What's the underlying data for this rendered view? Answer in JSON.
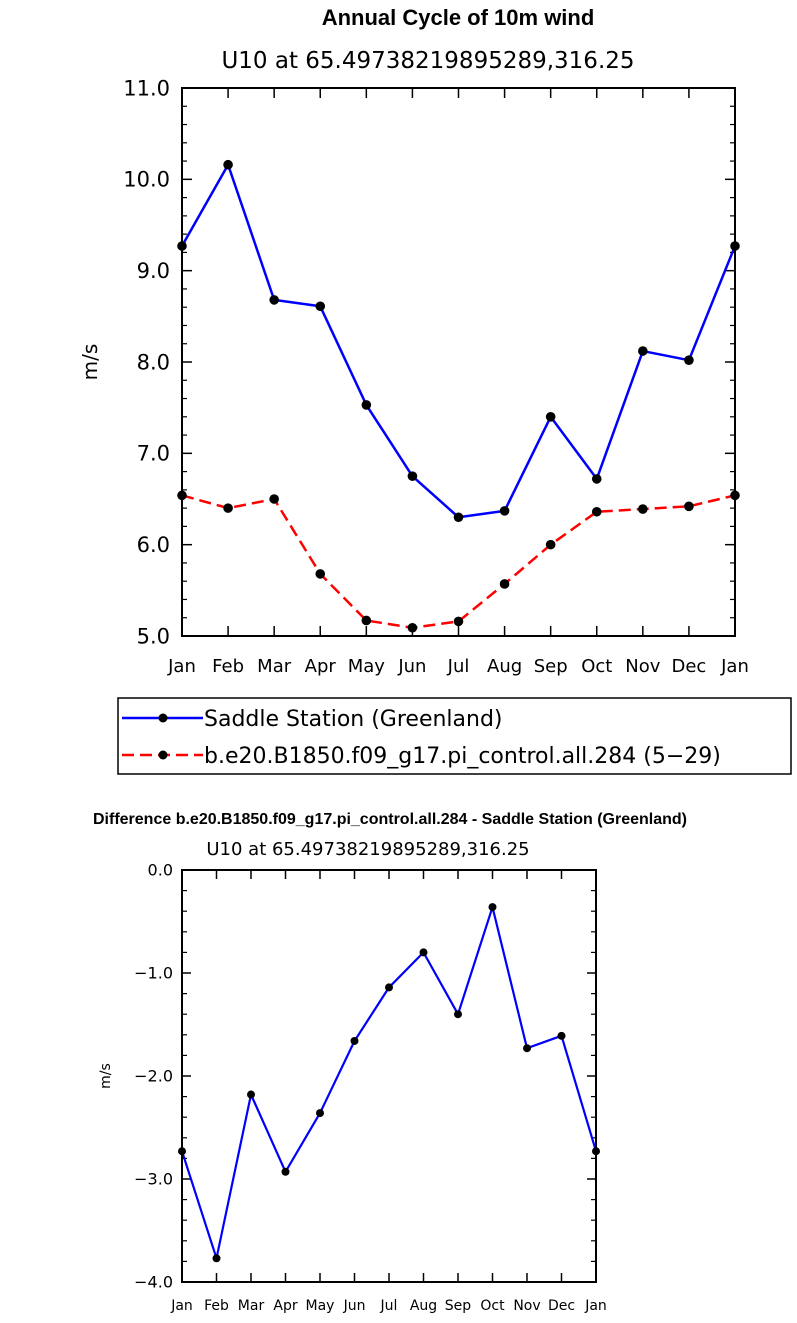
{
  "legend": {
    "entries": [
      {
        "label": "Saddle Station (Greenland)"
      },
      {
        "label": "b.e20.B1850.f09_g17.pi_control.all.284 (5−29)"
      }
    ]
  },
  "chart_data": [
    {
      "type": "line",
      "title": "Annual Cycle of 10m wind",
      "subtitle": "U10 at 65.49738219895289,316.25",
      "xlabel": "",
      "ylabel": "m/s",
      "categories": [
        "Jan",
        "Feb",
        "Mar",
        "Apr",
        "May",
        "Jun",
        "Jul",
        "Aug",
        "Sep",
        "Oct",
        "Nov",
        "Dec",
        "Jan"
      ],
      "ylim": [
        5.0,
        11.0
      ],
      "yticks": [
        "5.0",
        "6.0",
        "7.0",
        "8.0",
        "9.0",
        "10.0",
        "11.0"
      ],
      "legend_position": "bottom",
      "series": [
        {
          "name": "Saddle Station (Greenland)",
          "color": "#0000ff",
          "dash": "solid",
          "values": [
            9.27,
            10.16,
            8.68,
            8.61,
            7.53,
            6.75,
            6.3,
            6.37,
            7.4,
            6.72,
            8.12,
            8.02,
            9.27
          ]
        },
        {
          "name": "b.e20.B1850.f09_g17.pi_control.all.284 (5−29)",
          "color": "#ff0000",
          "dash": "dashed",
          "values": [
            6.54,
            6.4,
            6.5,
            5.68,
            5.17,
            5.09,
            5.16,
            5.57,
            6.0,
            6.36,
            6.39,
            6.42,
            6.54
          ]
        }
      ]
    },
    {
      "type": "line",
      "title": "Difference b.e20.B1850.f09_g17.pi_control.all.284 - Saddle Station (Greenland)",
      "subtitle": "U10 at 65.49738219895289,316.25",
      "xlabel": "",
      "ylabel": "m/s",
      "categories": [
        "Jan",
        "Feb",
        "Mar",
        "Apr",
        "May",
        "Jun",
        "Jul",
        "Aug",
        "Sep",
        "Oct",
        "Nov",
        "Dec",
        "Jan"
      ],
      "ylim": [
        -4.0,
        0.0
      ],
      "yticks": [
        "−4.0",
        "−3.0",
        "−2.0",
        "−1.0",
        "0.0"
      ],
      "series": [
        {
          "color": "#0000ff",
          "dash": "solid",
          "values": [
            -2.73,
            -3.77,
            -2.18,
            -2.93,
            -2.36,
            -1.66,
            -1.14,
            -0.8,
            -1.4,
            -0.36,
            -1.73,
            -1.61,
            -2.73
          ]
        }
      ]
    }
  ]
}
